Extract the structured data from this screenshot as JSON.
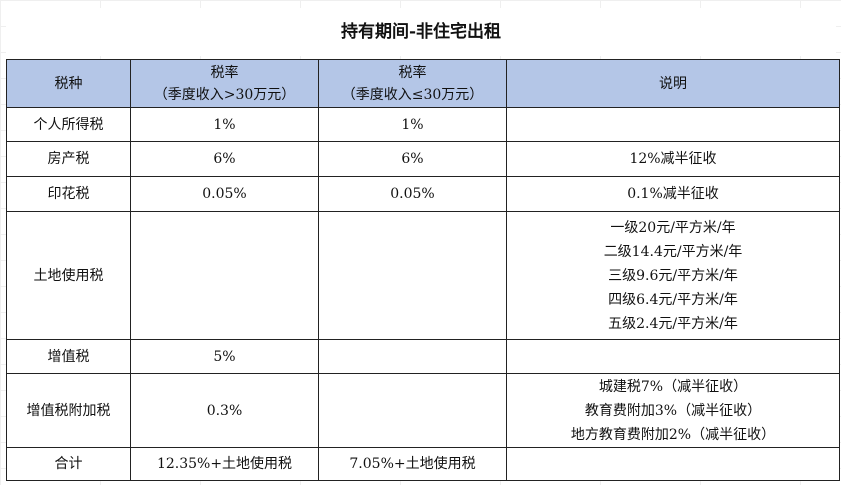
{
  "title": "持有期间-非住宅出租",
  "header": {
    "col1": "税种",
    "col2_line1": "税率",
    "col2_line2": "（季度收入>30万元）",
    "col3_line1": "税率",
    "col3_line2": "（季度收入≤30万元）",
    "col4": "说明"
  },
  "rows": [
    {
      "name": "个人所得税",
      "rate_high": "1%",
      "rate_low": "1%",
      "note": ""
    },
    {
      "name": "房产税",
      "rate_high": "6%",
      "rate_low": "6%",
      "note": "12%减半征收"
    },
    {
      "name": "印花税",
      "rate_high": "0.05%",
      "rate_low": "0.05%",
      "note": "0.1%减半征收"
    },
    {
      "name": "土地使用税",
      "rate_high": "",
      "rate_low": "",
      "note_lines": [
        "一级20元/平方米/年",
        "二级14.4元/平方米/年",
        "三级9.6元/平方米/年",
        "四级6.4元/平方米/年",
        "五级2.4元/平方米/年"
      ]
    },
    {
      "name": "增值税",
      "rate_high": "5%",
      "rate_low": "",
      "note": ""
    },
    {
      "name": "增值税附加税",
      "rate_high": "0.3%",
      "rate_low": "",
      "note_lines": [
        "城建税7%（减半征收）",
        "教育费附加3%（减半征收）",
        "地方教育费附加2%（减半征收）"
      ]
    },
    {
      "name": "合计",
      "rate_high": "12.35%+土地使用税",
      "rate_low": "7.05%+土地使用税",
      "note": ""
    }
  ]
}
